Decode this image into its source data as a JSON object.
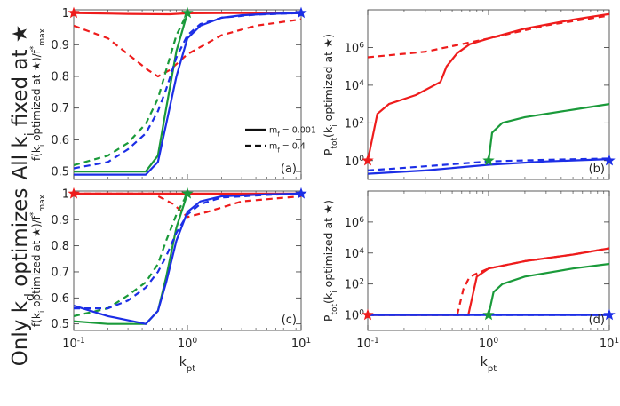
{
  "figure": {
    "row_labels": [
      {
        "main": "All k",
        "sub": "i",
        "tail": " fixed at ★"
      },
      {
        "main": "Only k",
        "sub": "d",
        "tail": " optimizes"
      }
    ],
    "x_axis_label": {
      "main": "k",
      "sub": "pt"
    },
    "left_ylabel": {
      "pre": "f(k",
      "sub1": "i",
      "mid": " optimized at ★)/f",
      "sup": "*",
      "sub2": "max"
    },
    "right_ylabel": {
      "pre": "P",
      "sub1": "tot",
      "mid1": "(k",
      "sub2": "i",
      "mid2": " optimized at ★)"
    },
    "legend": [
      {
        "label_main": "m",
        "label_sub": "f",
        "label_tail": " = 0.001",
        "style": "solid"
      },
      {
        "label_main": "m",
        "label_sub": "f",
        "label_tail": " = 0.4",
        "style": "dashed"
      }
    ],
    "colors": {
      "red": "#ee1c1c",
      "green": "#1a9a3a",
      "blue": "#1c2ee6"
    }
  },
  "chart_data": [
    {
      "type": "line",
      "panel_label": "(a)",
      "xscale": "log",
      "yscale": "linear",
      "xlim": [
        0.1,
        10
      ],
      "ylim": [
        0.475,
        1.01
      ],
      "xticks": [
        0.1,
        1,
        10
      ],
      "xtick_labels": [
        {
          "base": "10",
          "exp": "-1"
        },
        {
          "base": "10",
          "exp": "0"
        },
        {
          "base": "10",
          "exp": "1"
        }
      ],
      "yticks": [
        0.5,
        0.6,
        0.7,
        0.8,
        0.9,
        1
      ],
      "ytick_labels": [
        "0.5",
        "0.6",
        "0.7",
        "0.8",
        "0.9",
        "1"
      ],
      "series": [
        {
          "color": "red",
          "dash": false,
          "x": [
            0.1,
            0.3,
            0.7,
            1,
            3,
            10
          ],
          "y": [
            1,
            0.997,
            0.996,
            0.999,
            1,
            1
          ]
        },
        {
          "color": "red",
          "dash": true,
          "x": [
            0.1,
            0.2,
            0.3,
            0.45,
            0.55,
            0.7,
            1,
            2,
            4,
            10
          ],
          "y": [
            0.96,
            0.92,
            0.87,
            0.82,
            0.8,
            0.82,
            0.87,
            0.93,
            0.96,
            0.98
          ]
        },
        {
          "color": "green",
          "dash": false,
          "x": [
            0.1,
            0.2,
            0.43,
            0.55,
            0.65,
            0.8,
            1
          ],
          "y": [
            0.5,
            0.5,
            0.5,
            0.55,
            0.7,
            0.88,
            1
          ]
        },
        {
          "color": "green",
          "dash": true,
          "x": [
            0.1,
            0.2,
            0.3,
            0.43,
            0.55,
            0.65,
            0.8,
            1
          ],
          "y": [
            0.52,
            0.55,
            0.59,
            0.65,
            0.73,
            0.82,
            0.93,
            1
          ]
        },
        {
          "color": "blue",
          "dash": false,
          "x": [
            0.1,
            0.2,
            0.43,
            0.55,
            0.65,
            0.8,
            1,
            1.3,
            2,
            3,
            5,
            10
          ],
          "y": [
            0.49,
            0.49,
            0.49,
            0.53,
            0.65,
            0.8,
            0.92,
            0.96,
            0.985,
            0.993,
            0.997,
            1
          ]
        },
        {
          "color": "blue",
          "dash": true,
          "x": [
            0.1,
            0.2,
            0.3,
            0.43,
            0.55,
            0.65,
            0.8,
            1,
            1.3,
            2,
            4,
            10
          ],
          "y": [
            0.51,
            0.53,
            0.57,
            0.62,
            0.69,
            0.76,
            0.86,
            0.93,
            0.965,
            0.985,
            0.995,
            1
          ]
        }
      ],
      "markers": [
        {
          "x": 0.1,
          "y": 1,
          "color": "red"
        },
        {
          "x": 1,
          "y": 1,
          "color": "green"
        },
        {
          "x": 10,
          "y": 1,
          "color": "blue"
        }
      ]
    },
    {
      "type": "line",
      "panel_label": "(b)",
      "xscale": "log",
      "yscale": "log",
      "xlim": [
        0.1,
        10
      ],
      "ylim": [
        0.1,
        100000000
      ],
      "xticks": [
        0.1,
        1,
        10
      ],
      "xtick_labels": [
        {
          "base": "10",
          "exp": "-1"
        },
        {
          "base": "10",
          "exp": "0"
        },
        {
          "base": "10",
          "exp": "1"
        }
      ],
      "yticks": [
        1,
        100,
        10000,
        1000000
      ],
      "ytick_labels": [
        {
          "base": "10",
          "exp": "0"
        },
        {
          "base": "10",
          "exp": "2"
        },
        {
          "base": "10",
          "exp": "4"
        },
        {
          "base": "10",
          "exp": "6"
        }
      ],
      "series": [
        {
          "color": "red",
          "dash": false,
          "x": [
            0.1,
            0.12,
            0.15,
            0.25,
            0.4,
            0.45,
            0.55,
            0.7,
            1,
            2,
            5,
            10
          ],
          "y": [
            1,
            300,
            1000,
            3000,
            15000,
            100000,
            500000,
            1500000,
            3000000,
            10000000,
            30000000,
            60000000
          ]
        },
        {
          "color": "red",
          "dash": true,
          "x": [
            0.1,
            0.3,
            1,
            3,
            10
          ],
          "y": [
            300000,
            600000,
            3000000,
            15000000,
            50000000
          ]
        },
        {
          "color": "green",
          "dash": false,
          "x": [
            1,
            1.07,
            1.3,
            2,
            5,
            10
          ],
          "y": [
            1,
            30,
            100,
            200,
            500,
            1000
          ]
        },
        {
          "color": "blue",
          "dash": false,
          "x": [
            0.1,
            0.3,
            1,
            3,
            10
          ],
          "y": [
            0.2,
            0.3,
            0.6,
            0.9,
            1.2
          ]
        },
        {
          "color": "blue",
          "dash": true,
          "x": [
            0.1,
            0.3,
            1,
            3,
            10
          ],
          "y": [
            0.3,
            0.5,
            0.9,
            1.1,
            1.3
          ]
        }
      ],
      "markers": [
        {
          "x": 0.1,
          "y": 1,
          "color": "red"
        },
        {
          "x": 1,
          "y": 1,
          "color": "green"
        },
        {
          "x": 10,
          "y": 1,
          "color": "blue"
        }
      ]
    },
    {
      "type": "line",
      "panel_label": "(c)",
      "xscale": "log",
      "yscale": "linear",
      "xlim": [
        0.1,
        10
      ],
      "ylim": [
        0.475,
        1.01
      ],
      "xticks": [
        0.1,
        1,
        10
      ],
      "xtick_labels": [
        {
          "base": "10",
          "exp": "-1"
        },
        {
          "base": "10",
          "exp": "0"
        },
        {
          "base": "10",
          "exp": "1"
        }
      ],
      "yticks": [
        0.5,
        0.6,
        0.7,
        0.8,
        0.9,
        1
      ],
      "ytick_labels": [
        "0.5",
        "0.6",
        "0.7",
        "0.8",
        "0.9",
        "1"
      ],
      "series": [
        {
          "color": "red",
          "dash": false,
          "x": [
            0.1,
            0.5,
            1,
            3,
            10
          ],
          "y": [
            1,
            1,
            1,
            1,
            1
          ]
        },
        {
          "color": "red",
          "dash": true,
          "x": [
            0.1,
            0.5,
            0.75,
            0.9,
            1,
            1.5,
            3,
            10
          ],
          "y": [
            1,
            1,
            0.96,
            0.93,
            0.91,
            0.93,
            0.97,
            0.99
          ]
        },
        {
          "color": "green",
          "dash": false,
          "x": [
            0.1,
            0.2,
            0.43,
            0.55,
            0.65,
            0.8,
            1
          ],
          "y": [
            0.51,
            0.5,
            0.5,
            0.55,
            0.68,
            0.87,
            1
          ]
        },
        {
          "color": "green",
          "dash": true,
          "x": [
            0.1,
            0.2,
            0.3,
            0.43,
            0.55,
            0.65,
            0.8,
            1
          ],
          "y": [
            0.53,
            0.56,
            0.61,
            0.66,
            0.73,
            0.82,
            0.92,
            1
          ]
        },
        {
          "color": "blue",
          "dash": false,
          "x": [
            0.1,
            0.2,
            0.43,
            0.55,
            0.65,
            0.8,
            1,
            1.3,
            2,
            5,
            10
          ],
          "y": [
            0.57,
            0.53,
            0.5,
            0.55,
            0.66,
            0.82,
            0.93,
            0.97,
            0.99,
            0.997,
            1
          ]
        },
        {
          "color": "blue",
          "dash": true,
          "x": [
            0.1,
            0.2,
            0.3,
            0.43,
            0.55,
            0.65,
            0.8,
            1,
            1.3,
            2,
            5,
            10
          ],
          "y": [
            0.56,
            0.56,
            0.59,
            0.64,
            0.7,
            0.76,
            0.85,
            0.92,
            0.96,
            0.985,
            0.995,
            1
          ]
        }
      ],
      "markers": [
        {
          "x": 0.1,
          "y": 1,
          "color": "red"
        },
        {
          "x": 1,
          "y": 1,
          "color": "green"
        },
        {
          "x": 10,
          "y": 1,
          "color": "blue"
        }
      ]
    },
    {
      "type": "line",
      "panel_label": "(d)",
      "xscale": "log",
      "yscale": "log",
      "xlim": [
        0.1,
        10
      ],
      "ylim": [
        0.1,
        100000000
      ],
      "xticks": [
        0.1,
        1,
        10
      ],
      "xtick_labels": [
        {
          "base": "10",
          "exp": "-1"
        },
        {
          "base": "10",
          "exp": "0"
        },
        {
          "base": "10",
          "exp": "1"
        }
      ],
      "yticks": [
        1,
        100,
        10000,
        1000000
      ],
      "ytick_labels": [
        {
          "base": "10",
          "exp": "0"
        },
        {
          "base": "10",
          "exp": "2"
        },
        {
          "base": "10",
          "exp": "4"
        },
        {
          "base": "10",
          "exp": "6"
        }
      ],
      "series": [
        {
          "color": "red",
          "dash": false,
          "x": [
            0.1,
            0.68,
            0.8,
            1,
            2,
            5,
            10
          ],
          "y": [
            1,
            1,
            300,
            1000,
            3000,
            8000,
            20000
          ]
        },
        {
          "color": "red",
          "dash": true,
          "x": [
            0.55,
            0.62,
            0.7,
            1,
            2,
            5,
            10
          ],
          "y": [
            1,
            50,
            300,
            1000,
            3000,
            8000,
            20000
          ]
        },
        {
          "color": "green",
          "dash": false,
          "x": [
            1,
            1.1,
            1.3,
            2,
            5,
            10
          ],
          "y": [
            1,
            30,
            100,
            300,
            1000,
            2000
          ]
        },
        {
          "color": "blue",
          "dash": false,
          "x": [
            0.1,
            1,
            10
          ],
          "y": [
            1,
            1,
            1
          ]
        },
        {
          "color": "blue",
          "dash": true,
          "x": [
            0.1,
            1,
            10
          ],
          "y": [
            1,
            1,
            1
          ]
        }
      ],
      "markers": [
        {
          "x": 0.1,
          "y": 1,
          "color": "red"
        },
        {
          "x": 1,
          "y": 1,
          "color": "green"
        },
        {
          "x": 10,
          "y": 1,
          "color": "blue"
        }
      ]
    }
  ]
}
